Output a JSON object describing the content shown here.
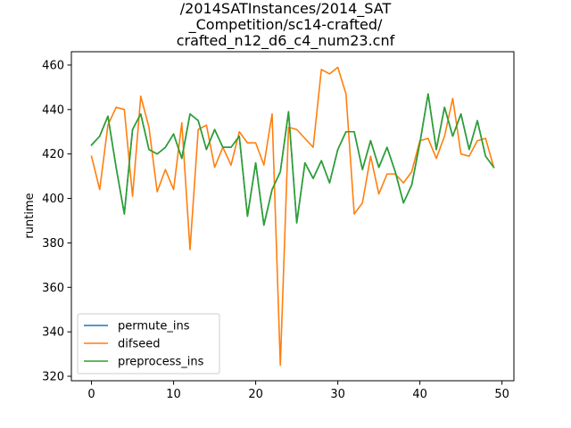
{
  "chart_data": {
    "type": "line",
    "title_lines": [
      "/2014SATInstances/2014_SAT",
      "_Competition/sc14-crafted/",
      "crafted_n12_d6_c4_num23.cnf"
    ],
    "xlabel": "",
    "ylabel": "runtime",
    "xlim": [
      -2.45,
      51.45
    ],
    "ylim": [
      318,
      466
    ],
    "xticks": [
      0,
      10,
      20,
      30,
      40,
      50
    ],
    "yticks": [
      320,
      340,
      360,
      380,
      400,
      420,
      440,
      460
    ],
    "legend_position": "lower-left",
    "x": [
      0,
      1,
      2,
      3,
      4,
      5,
      6,
      7,
      8,
      9,
      10,
      11,
      12,
      13,
      14,
      15,
      16,
      17,
      18,
      19,
      20,
      21,
      22,
      23,
      24,
      25,
      26,
      27,
      28,
      29,
      30,
      31,
      32,
      33,
      34,
      35,
      36,
      37,
      38,
      39,
      40,
      41,
      42,
      43,
      44,
      45,
      46,
      47,
      48,
      49
    ],
    "series": [
      {
        "name": "permute_ins",
        "color": "#1f77b4",
        "values": [
          424,
          428,
          437,
          414,
          393,
          431,
          438,
          422,
          420,
          423,
          429,
          418,
          438,
          435,
          422,
          431,
          423,
          423,
          428,
          392,
          416,
          388,
          404,
          412,
          439,
          389,
          416,
          409,
          417,
          407,
          422,
          430,
          430,
          413,
          426,
          414,
          423,
          412,
          398,
          406,
          425,
          447,
          422,
          441,
          428,
          438,
          422,
          435,
          419,
          414
        ]
      },
      {
        "name": "difseed",
        "color": "#ff7f0e",
        "values": [
          419,
          404,
          433,
          441,
          440,
          401,
          446,
          432,
          403,
          413,
          404,
          434,
          377,
          431,
          433,
          414,
          423,
          415,
          430,
          425,
          425,
          415,
          438,
          325,
          432,
          431,
          427,
          423,
          458,
          456,
          459,
          447,
          393,
          398,
          419,
          402,
          411,
          411,
          407,
          412,
          426,
          427,
          418,
          428,
          445,
          420,
          419,
          426,
          427,
          414
        ]
      },
      {
        "name": "preprocess_ins",
        "color": "#2ca02c",
        "values": [
          424,
          428,
          437,
          414,
          393,
          431,
          438,
          422,
          420,
          423,
          429,
          418,
          438,
          435,
          422,
          431,
          423,
          423,
          428,
          392,
          416,
          388,
          404,
          412,
          439,
          389,
          416,
          409,
          417,
          407,
          422,
          430,
          430,
          413,
          426,
          414,
          423,
          412,
          398,
          406,
          425,
          447,
          422,
          441,
          428,
          438,
          422,
          435,
          419,
          414
        ]
      }
    ]
  }
}
